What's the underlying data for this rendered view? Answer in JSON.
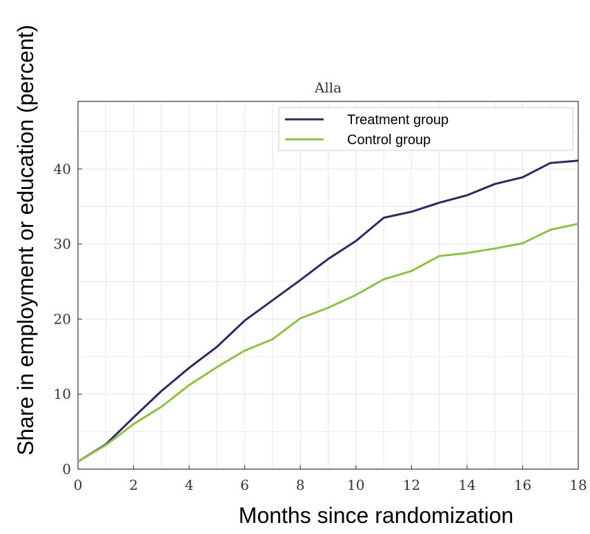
{
  "chart_data": {
    "type": "line",
    "title": "Alla",
    "xlabel": "Months since randomization",
    "ylabel": "Share in employment or education (percent)",
    "xlim": [
      0,
      18
    ],
    "ylim": [
      0,
      49
    ],
    "xticks": [
      0,
      2,
      4,
      6,
      8,
      10,
      12,
      14,
      16,
      18
    ],
    "yticks": [
      0,
      10,
      20,
      30,
      40
    ],
    "grid": true,
    "legend_position": "top-right",
    "x": [
      0,
      1,
      2,
      3,
      4,
      5,
      6,
      7,
      8,
      9,
      10,
      11,
      12,
      13,
      14,
      15,
      16,
      17,
      18
    ],
    "series": [
      {
        "name": "Treatment group",
        "color": "#2b2a5e",
        "values": [
          1.0,
          3.3,
          6.9,
          10.4,
          13.5,
          16.3,
          19.8,
          22.5,
          25.2,
          28.0,
          30.4,
          33.5,
          34.3,
          35.5,
          36.5,
          38.0,
          38.9,
          40.8,
          41.1
        ]
      },
      {
        "name": "Control group",
        "color": "#8fbf4a",
        "values": [
          1.0,
          3.2,
          6.0,
          8.3,
          11.2,
          13.6,
          15.8,
          17.3,
          20.1,
          21.5,
          23.2,
          25.3,
          26.4,
          28.4,
          28.8,
          29.4,
          30.1,
          31.9,
          32.7
        ]
      }
    ]
  }
}
